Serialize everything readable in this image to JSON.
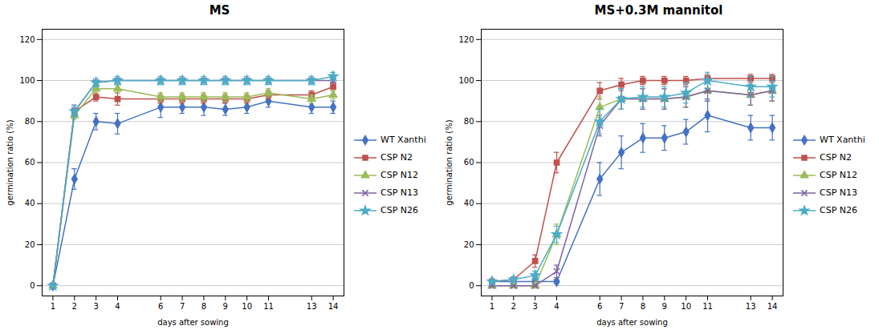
{
  "chart_data": [
    {
      "type": "line",
      "title": "MS",
      "xlabel": "days after sowing",
      "ylabel": "germination ratio (%)",
      "x": [
        1,
        2,
        3,
        4,
        6,
        7,
        8,
        9,
        10,
        11,
        13,
        14
      ],
      "xlim": [
        0.5,
        14.5
      ],
      "xticks": [
        1,
        2,
        3,
        4,
        6,
        7,
        8,
        9,
        10,
        11,
        13,
        14
      ],
      "ylim": [
        -5,
        125
      ],
      "yticks": [
        0,
        20,
        40,
        60,
        80,
        100,
        120
      ],
      "grid": "y",
      "legend": "right",
      "series": [
        {
          "name": "WT Xanthi",
          "color": "#4472C4",
          "marker": "diamond",
          "values": [
            0,
            52,
            80,
            79,
            87,
            87,
            87,
            86,
            87,
            90,
            87,
            87
          ],
          "errors": [
            0,
            5,
            4,
            5,
            5,
            3,
            4,
            3,
            3,
            3,
            3,
            3
          ]
        },
        {
          "name": "CSP N2",
          "color": "#C0504D",
          "marker": "square",
          "values": [
            0,
            85,
            92,
            91,
            91,
            91,
            91,
            91,
            91,
            93,
            93,
            97
          ],
          "errors": [
            0,
            3,
            2,
            3,
            2,
            2,
            2,
            2,
            2,
            2,
            2,
            2
          ]
        },
        {
          "name": "CSP N12",
          "color": "#9BBB59",
          "marker": "triangle",
          "values": [
            0,
            83,
            96,
            96,
            92,
            92,
            92,
            92,
            92,
            94,
            91,
            93
          ],
          "errors": [
            0,
            2,
            2,
            2,
            2,
            2,
            2,
            2,
            2,
            2,
            2,
            2
          ]
        },
        {
          "name": "CSP N13",
          "color": "#8064A2",
          "marker": "times",
          "values": [
            0,
            85,
            99,
            100,
            100,
            100,
            100,
            100,
            100,
            100,
            100,
            100
          ],
          "errors": [
            0,
            2,
            1,
            1,
            1,
            1,
            1,
            1,
            1,
            1,
            1,
            1
          ]
        },
        {
          "name": "CSP N26",
          "color": "#4BACC6",
          "marker": "star",
          "values": [
            0,
            85,
            99,
            100,
            100,
            100,
            100,
            100,
            100,
            100,
            100,
            102
          ],
          "errors": [
            0,
            3,
            2,
            2,
            2,
            2,
            2,
            2,
            2,
            2,
            2,
            2
          ]
        }
      ]
    },
    {
      "type": "line",
      "title": "MS+0.3M mannitol",
      "xlabel": "days after sowing",
      "ylabel": "germination ratio (%)",
      "x": [
        1,
        2,
        3,
        4,
        6,
        7,
        8,
        9,
        10,
        11,
        13,
        14
      ],
      "xlim": [
        0.5,
        14.5
      ],
      "xticks": [
        1,
        2,
        3,
        4,
        6,
        7,
        8,
        9,
        10,
        11,
        13,
        14
      ],
      "ylim": [
        -5,
        125
      ],
      "yticks": [
        0,
        20,
        40,
        60,
        80,
        100,
        120
      ],
      "grid": "y",
      "legend": "right",
      "series": [
        {
          "name": "WT Xanthi",
          "color": "#4472C4",
          "marker": "diamond",
          "values": [
            2,
            2,
            2,
            2,
            52,
            65,
            72,
            72,
            75,
            83,
            77,
            77
          ],
          "errors": [
            1,
            1,
            1,
            1,
            8,
            8,
            7,
            6,
            6,
            8,
            6,
            6
          ]
        },
        {
          "name": "CSP N2",
          "color": "#C0504D",
          "marker": "square",
          "values": [
            2,
            3,
            12,
            60,
            95,
            98,
            100,
            100,
            100,
            101,
            101,
            101
          ],
          "errors": [
            1,
            1,
            3,
            5,
            4,
            3,
            2,
            2,
            2,
            2,
            2,
            2
          ]
        },
        {
          "name": "CSP N12",
          "color": "#9BBB59",
          "marker": "triangle",
          "values": [
            0,
            0,
            0,
            25,
            87,
            91,
            91,
            91,
            92,
            95,
            93,
            95
          ],
          "errors": [
            0,
            0,
            0,
            5,
            5,
            5,
            5,
            5,
            5,
            5,
            5,
            5
          ]
        },
        {
          "name": "CSP N13",
          "color": "#8064A2",
          "marker": "times",
          "values": [
            0,
            0,
            0,
            7,
            78,
            91,
            91,
            91,
            92,
            95,
            93,
            95
          ],
          "errors": [
            0,
            0,
            0,
            3,
            5,
            5,
            5,
            5,
            5,
            5,
            5,
            5
          ]
        },
        {
          "name": "CSP N26",
          "color": "#4BACC6",
          "marker": "star",
          "values": [
            2,
            3,
            5,
            25,
            80,
            91,
            92,
            92,
            94,
            100,
            97,
            97
          ],
          "errors": [
            1,
            1,
            2,
            4,
            6,
            5,
            5,
            5,
            5,
            4,
            5,
            5
          ]
        }
      ]
    }
  ]
}
